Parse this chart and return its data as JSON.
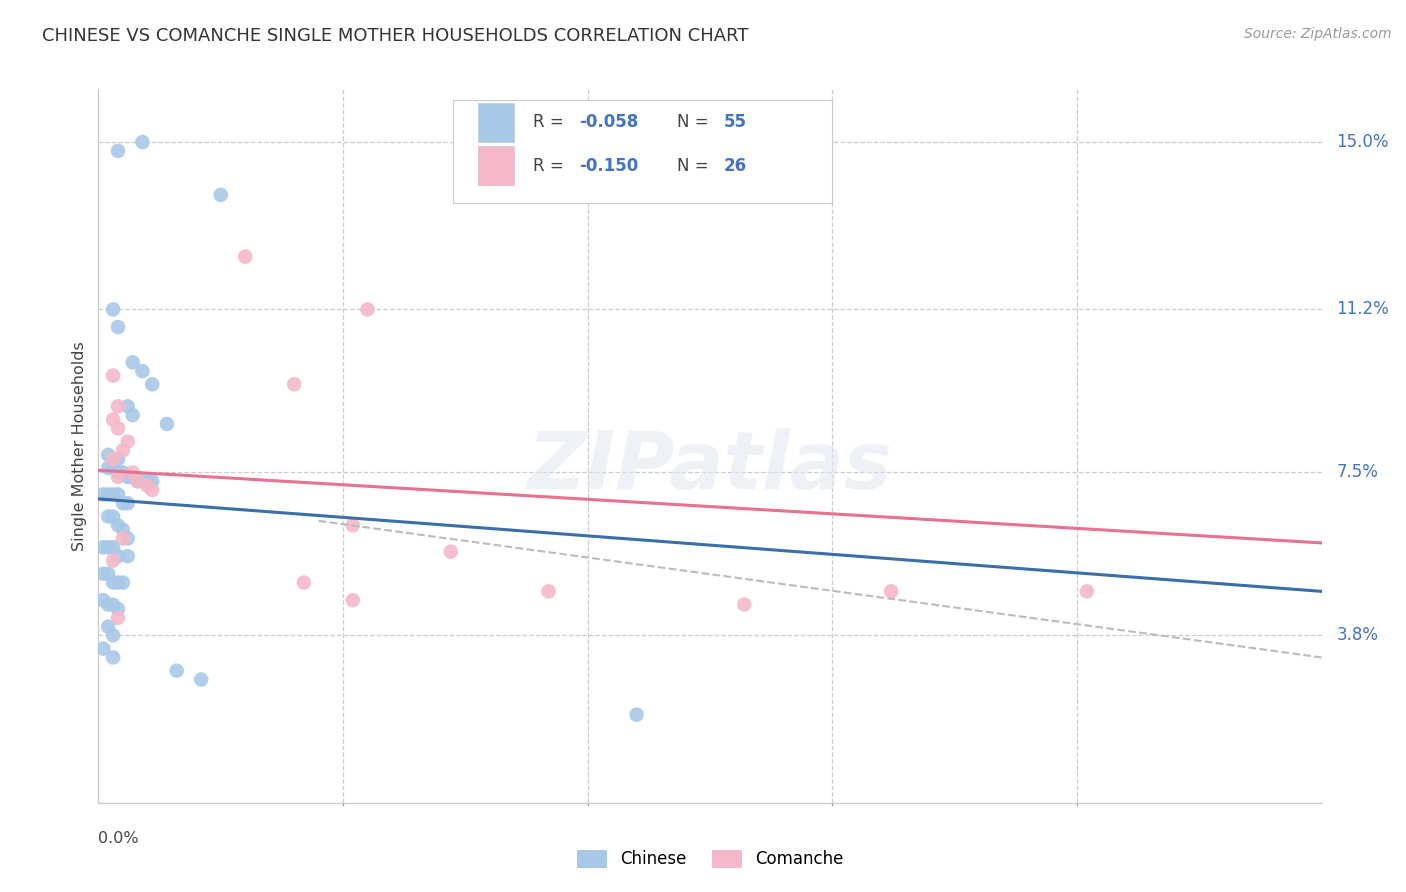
{
  "title": "CHINESE VS COMANCHE SINGLE MOTHER HOUSEHOLDS CORRELATION CHART",
  "source": "Source: ZipAtlas.com",
  "ylabel": "Single Mother Households",
  "ytick_labels": [
    "3.8%",
    "7.5%",
    "11.2%",
    "15.0%"
  ],
  "ytick_values": [
    0.038,
    0.075,
    0.112,
    0.15
  ],
  "xlim": [
    0.0,
    0.25
  ],
  "ylim": [
    0.0,
    0.162
  ],
  "watermark": "ZIPatlas",
  "chinese_color": "#a8c8e8",
  "comanche_color": "#f4b8c8",
  "chinese_line_color": "#3a6fa8",
  "comanche_line_color": "#e87090",
  "dashed_line_color": "#bbbbbb",
  "chinese_scatter": [
    [
      0.004,
      0.148
    ],
    [
      0.009,
      0.15
    ],
    [
      0.025,
      0.138
    ],
    [
      0.003,
      0.112
    ],
    [
      0.004,
      0.108
    ],
    [
      0.007,
      0.1
    ],
    [
      0.009,
      0.098
    ],
    [
      0.011,
      0.095
    ],
    [
      0.006,
      0.09
    ],
    [
      0.007,
      0.088
    ],
    [
      0.014,
      0.086
    ],
    [
      0.002,
      0.079
    ],
    [
      0.004,
      0.078
    ],
    [
      0.002,
      0.076
    ],
    [
      0.003,
      0.076
    ],
    [
      0.004,
      0.075
    ],
    [
      0.005,
      0.075
    ],
    [
      0.006,
      0.074
    ],
    [
      0.007,
      0.074
    ],
    [
      0.008,
      0.073
    ],
    [
      0.009,
      0.073
    ],
    [
      0.01,
      0.073
    ],
    [
      0.011,
      0.073
    ],
    [
      0.001,
      0.07
    ],
    [
      0.002,
      0.07
    ],
    [
      0.003,
      0.07
    ],
    [
      0.004,
      0.07
    ],
    [
      0.005,
      0.068
    ],
    [
      0.006,
      0.068
    ],
    [
      0.002,
      0.065
    ],
    [
      0.003,
      0.065
    ],
    [
      0.004,
      0.063
    ],
    [
      0.005,
      0.062
    ],
    [
      0.006,
      0.06
    ],
    [
      0.001,
      0.058
    ],
    [
      0.002,
      0.058
    ],
    [
      0.003,
      0.058
    ],
    [
      0.004,
      0.056
    ],
    [
      0.006,
      0.056
    ],
    [
      0.001,
      0.052
    ],
    [
      0.002,
      0.052
    ],
    [
      0.003,
      0.05
    ],
    [
      0.004,
      0.05
    ],
    [
      0.005,
      0.05
    ],
    [
      0.001,
      0.046
    ],
    [
      0.002,
      0.045
    ],
    [
      0.003,
      0.045
    ],
    [
      0.004,
      0.044
    ],
    [
      0.002,
      0.04
    ],
    [
      0.003,
      0.038
    ],
    [
      0.001,
      0.035
    ],
    [
      0.003,
      0.033
    ],
    [
      0.016,
      0.03
    ],
    [
      0.021,
      0.028
    ],
    [
      0.11,
      0.02
    ]
  ],
  "comanche_scatter": [
    [
      0.03,
      0.124
    ],
    [
      0.003,
      0.097
    ],
    [
      0.055,
      0.112
    ],
    [
      0.004,
      0.09
    ],
    [
      0.04,
      0.095
    ],
    [
      0.003,
      0.087
    ],
    [
      0.004,
      0.085
    ],
    [
      0.006,
      0.082
    ],
    [
      0.005,
      0.08
    ],
    [
      0.003,
      0.078
    ],
    [
      0.007,
      0.075
    ],
    [
      0.004,
      0.074
    ],
    [
      0.008,
      0.073
    ],
    [
      0.01,
      0.072
    ],
    [
      0.011,
      0.071
    ],
    [
      0.005,
      0.06
    ],
    [
      0.052,
      0.063
    ],
    [
      0.003,
      0.055
    ],
    [
      0.072,
      0.057
    ],
    [
      0.042,
      0.05
    ],
    [
      0.092,
      0.048
    ],
    [
      0.052,
      0.046
    ],
    [
      0.132,
      0.045
    ],
    [
      0.162,
      0.048
    ],
    [
      0.202,
      0.048
    ],
    [
      0.004,
      0.042
    ]
  ],
  "chinese_trend_x": [
    0.0,
    0.25
  ],
  "chinese_trend_y": [
    0.069,
    0.048
  ],
  "comanche_trend_x": [
    0.0,
    0.25
  ],
  "comanche_trend_y": [
    0.0755,
    0.059
  ],
  "dashed_trend_x": [
    0.045,
    0.25
  ],
  "dashed_trend_y": [
    0.064,
    0.033
  ]
}
